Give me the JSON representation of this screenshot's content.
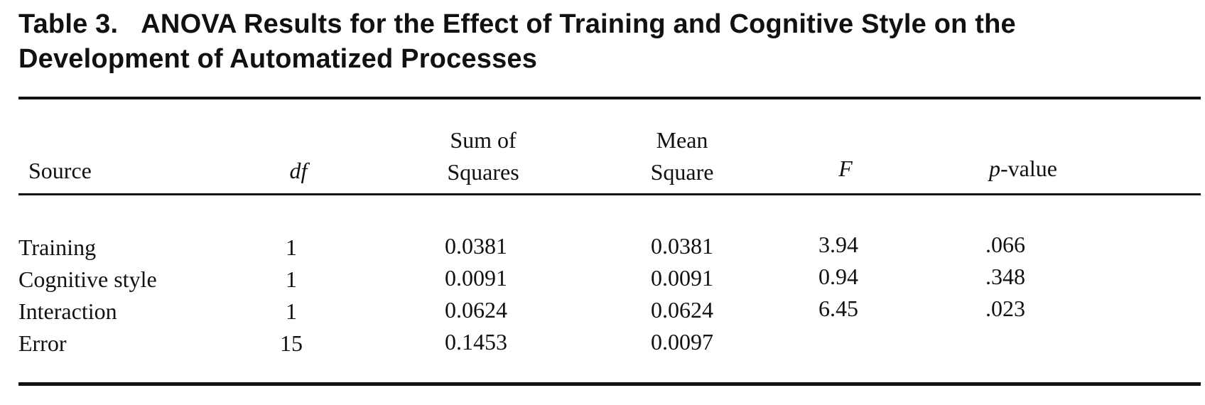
{
  "caption": {
    "label": "Table 3.",
    "title": "ANOVA Results for the Effect of Training and Cognitive Style on the Development of Automatized Processes"
  },
  "columns": {
    "source": "Source",
    "df": "df",
    "ss_line1": "Sum of",
    "ss_line2": "Squares",
    "ms_line1": "Mean",
    "ms_line2": "Square",
    "f": "F",
    "p_italic": "p",
    "p_rest": "-value"
  },
  "rows": [
    {
      "source": "Training",
      "df": "1",
      "ss": "0.0381",
      "ms": "0.0381",
      "f": "3.94",
      "p": ".066"
    },
    {
      "source": "Cognitive style",
      "df": "1",
      "ss": "0.0091",
      "ms": "0.0091",
      "f": "0.94",
      "p": ".348"
    },
    {
      "source": "Interaction",
      "df": "1",
      "ss": "0.0624",
      "ms": "0.0624",
      "f": "6.45",
      "p": ".023"
    },
    {
      "source": "Error",
      "df": "15",
      "ss": "0.1453",
      "ms": "0.0097",
      "f": "",
      "p": ""
    }
  ]
}
